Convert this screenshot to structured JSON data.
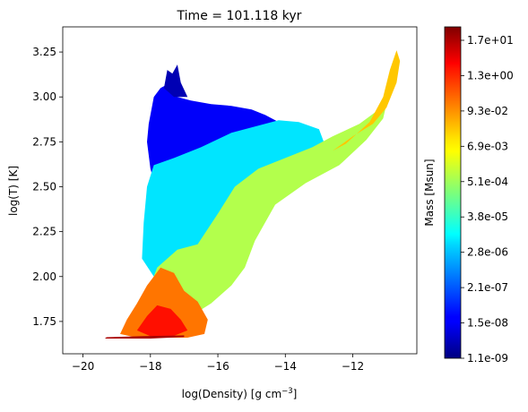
{
  "chart_data": {
    "type": "heatmap",
    "title": "Time = 101.118 kyr",
    "xlabel_main": "log(Density) [g cm",
    "xlabel_sup": "−3",
    "xlabel_close": "]",
    "ylabel": "log(T) [K]",
    "xlim": [
      -20.6,
      -10.1
    ],
    "ylim": [
      1.57,
      3.39
    ],
    "xticks": [
      -20,
      -18,
      -16,
      -14,
      -12
    ],
    "xtick_labels": [
      "−20",
      "−18",
      "−16",
      "−14",
      "−12"
    ],
    "yticks": [
      1.75,
      2.0,
      2.25,
      2.5,
      2.75,
      3.0,
      3.25
    ],
    "ytick_labels": [
      "1.75",
      "2.00",
      "2.25",
      "2.50",
      "2.75",
      "3.00",
      "3.25"
    ],
    "colorbar": {
      "label": "Mass [Msun]",
      "colormap": "jet",
      "scale": "log",
      "ticks": [
        "1.7e+01",
        "1.3e+00",
        "9.3e-02",
        "6.9e-03",
        "5.1e-04",
        "3.8e-05",
        "2.8e-06",
        "2.1e-07",
        "1.5e-08",
        "1.1e-09"
      ]
    },
    "grid": false,
    "regions": [
      {
        "name": "hot-low-density",
        "color_level": 0.12,
        "points": [
          [
            -17.85,
            2.5
          ],
          [
            -18.0,
            2.6
          ],
          [
            -18.1,
            2.75
          ],
          [
            -18.05,
            2.85
          ],
          [
            -17.9,
            3.0
          ],
          [
            -17.7,
            3.05
          ],
          [
            -17.4,
            3.08
          ],
          [
            -17.2,
            3.0
          ],
          [
            -16.8,
            2.98
          ],
          [
            -16.2,
            2.96
          ],
          [
            -15.6,
            2.95
          ],
          [
            -15.0,
            2.93
          ],
          [
            -14.6,
            2.9
          ],
          [
            -14.2,
            2.86
          ],
          [
            -14.6,
            2.82
          ],
          [
            -15.3,
            2.8
          ],
          [
            -16.0,
            2.76
          ],
          [
            -16.8,
            2.68
          ],
          [
            -17.3,
            2.6
          ],
          [
            -17.6,
            2.52
          ]
        ]
      },
      {
        "name": "mid-band",
        "color_level": 0.35,
        "points": [
          [
            -18.25,
            2.1
          ],
          [
            -18.2,
            2.3
          ],
          [
            -18.1,
            2.5
          ],
          [
            -17.9,
            2.62
          ],
          [
            -17.3,
            2.66
          ],
          [
            -16.5,
            2.72
          ],
          [
            -15.6,
            2.8
          ],
          [
            -14.8,
            2.84
          ],
          [
            -14.2,
            2.87
          ],
          [
            -13.6,
            2.86
          ],
          [
            -13.0,
            2.82
          ],
          [
            -12.8,
            2.72
          ],
          [
            -13.5,
            2.66
          ],
          [
            -14.5,
            2.6
          ],
          [
            -15.2,
            2.5
          ],
          [
            -15.8,
            2.35
          ],
          [
            -16.2,
            2.2
          ],
          [
            -16.6,
            2.05
          ],
          [
            -17.3,
            1.98
          ],
          [
            -17.9,
            2.0
          ]
        ]
      },
      {
        "name": "cool-dense-band",
        "color_level": 0.55,
        "points": [
          [
            -18.2,
            1.85
          ],
          [
            -17.8,
            2.05
          ],
          [
            -17.2,
            2.15
          ],
          [
            -16.6,
            2.18
          ],
          [
            -16.0,
            2.35
          ],
          [
            -15.5,
            2.5
          ],
          [
            -14.8,
            2.6
          ],
          [
            -14.0,
            2.66
          ],
          [
            -13.2,
            2.72
          ],
          [
            -12.6,
            2.78
          ],
          [
            -11.8,
            2.85
          ],
          [
            -11.3,
            2.92
          ],
          [
            -10.95,
            3.0
          ],
          [
            -11.1,
            2.88
          ],
          [
            -11.6,
            2.76
          ],
          [
            -12.4,
            2.62
          ],
          [
            -13.4,
            2.52
          ],
          [
            -14.3,
            2.4
          ],
          [
            -14.9,
            2.2
          ],
          [
            -15.2,
            2.05
          ],
          [
            -15.6,
            1.95
          ],
          [
            -16.2,
            1.85
          ],
          [
            -16.8,
            1.78
          ],
          [
            -17.5,
            1.75
          ]
        ]
      },
      {
        "name": "dense-ridge",
        "color_level": 0.68,
        "points": [
          [
            -12.6,
            2.7
          ],
          [
            -12.0,
            2.78
          ],
          [
            -11.4,
            2.85
          ],
          [
            -11.0,
            2.94
          ],
          [
            -10.7,
            3.08
          ],
          [
            -10.6,
            3.2
          ],
          [
            -10.7,
            3.26
          ],
          [
            -10.9,
            3.15
          ],
          [
            -11.1,
            3.0
          ],
          [
            -11.5,
            2.86
          ],
          [
            -12.2,
            2.74
          ]
        ]
      },
      {
        "name": "cold-dense-core",
        "color_level": 0.76,
        "points": [
          [
            -18.9,
            1.68
          ],
          [
            -18.7,
            1.76
          ],
          [
            -18.4,
            1.85
          ],
          [
            -18.1,
            1.95
          ],
          [
            -17.7,
            2.05
          ],
          [
            -17.3,
            2.02
          ],
          [
            -17.0,
            1.92
          ],
          [
            -16.6,
            1.86
          ],
          [
            -16.3,
            1.76
          ],
          [
            -16.4,
            1.68
          ],
          [
            -16.9,
            1.66
          ],
          [
            -17.6,
            1.66
          ],
          [
            -18.4,
            1.66
          ]
        ]
      },
      {
        "name": "cold-dense-peak",
        "color_level": 0.86,
        "points": [
          [
            -18.4,
            1.7
          ],
          [
            -18.1,
            1.78
          ],
          [
            -17.8,
            1.84
          ],
          [
            -17.4,
            1.82
          ],
          [
            -17.1,
            1.76
          ],
          [
            -16.9,
            1.7
          ],
          [
            -17.3,
            1.67
          ],
          [
            -17.9,
            1.66
          ]
        ]
      },
      {
        "name": "floor-line",
        "color_level": 0.96,
        "points": [
          [
            -19.35,
            1.655
          ],
          [
            -18.0,
            1.655
          ],
          [
            -17.0,
            1.663
          ],
          [
            -17.0,
            1.672
          ],
          [
            -18.2,
            1.668
          ],
          [
            -19.3,
            1.662
          ]
        ]
      },
      {
        "name": "low-mass-fringe",
        "color_level": 0.05,
        "points": [
          [
            -17.6,
            3.05
          ],
          [
            -17.5,
            3.15
          ],
          [
            -17.35,
            3.13
          ],
          [
            -17.2,
            3.18
          ],
          [
            -17.1,
            3.08
          ],
          [
            -16.9,
            3.0
          ],
          [
            -17.3,
            3.0
          ]
        ]
      }
    ]
  }
}
